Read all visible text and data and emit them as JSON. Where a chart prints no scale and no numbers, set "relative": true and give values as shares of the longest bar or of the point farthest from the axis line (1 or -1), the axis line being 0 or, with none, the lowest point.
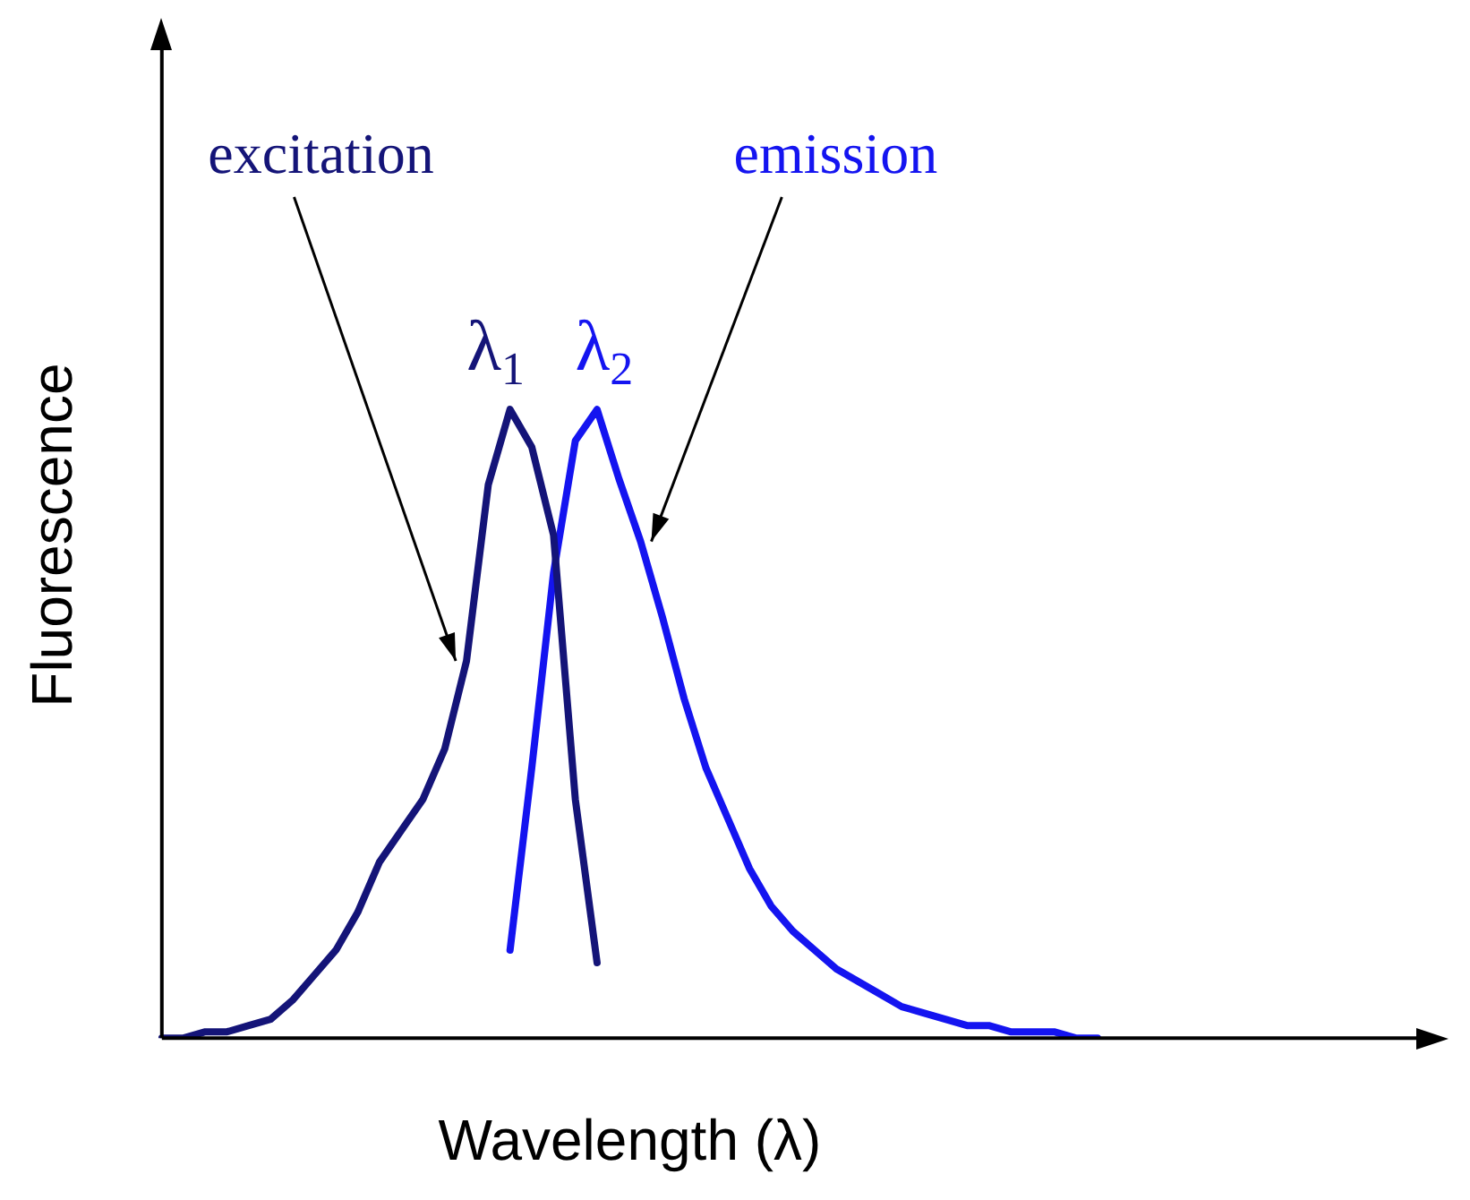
{
  "chart_data": {
    "type": "line",
    "relative": true,
    "xlabel": "Wavelength (λ)",
    "ylabel": "Fluorescence",
    "tick_labels": false,
    "grid": false,
    "marker": "none",
    "categories": [
      null,
      null,
      null,
      null,
      null,
      null,
      null,
      null,
      null,
      null,
      null,
      null,
      null,
      null,
      null,
      null,
      null,
      null,
      null,
      null,
      null,
      null,
      null,
      null,
      null,
      null,
      null,
      null,
      null,
      null,
      null,
      null,
      null,
      null,
      null,
      null,
      null,
      null,
      null,
      null,
      null,
      null,
      null,
      null
    ],
    "series": [
      {
        "name": "excitation",
        "color": "#141478",
        "values": [
          0,
          0,
          0.01,
          0.01,
          0.02,
          0.03,
          0.06,
          0.1,
          0.14,
          0.2,
          0.28,
          0.33,
          0.38,
          0.46,
          0.6,
          0.88,
          1,
          0.94,
          0.8,
          0.38,
          0.12,
          null,
          null,
          null,
          null,
          null,
          null,
          null,
          null,
          null,
          null,
          null,
          null,
          null,
          null,
          null,
          null,
          null,
          null,
          null,
          null,
          null,
          null,
          null
        ]
      },
      {
        "name": "emission",
        "color": "#1414f0",
        "values": [
          null,
          null,
          null,
          null,
          null,
          null,
          null,
          null,
          null,
          null,
          null,
          null,
          null,
          null,
          null,
          null,
          0.14,
          0.43,
          0.74,
          0.95,
          1,
          0.89,
          0.79,
          0.67,
          0.54,
          0.43,
          0.35,
          0.27,
          0.21,
          0.17,
          0.14,
          0.11,
          0.09,
          0.07,
          0.05,
          0.04,
          0.03,
          0.02,
          0.02,
          0.01,
          0.01,
          0.01,
          0,
          0
        ]
      }
    ],
    "annotations": [
      "λ$_{1}$",
      "λ$_{2}$"
    ]
  }
}
